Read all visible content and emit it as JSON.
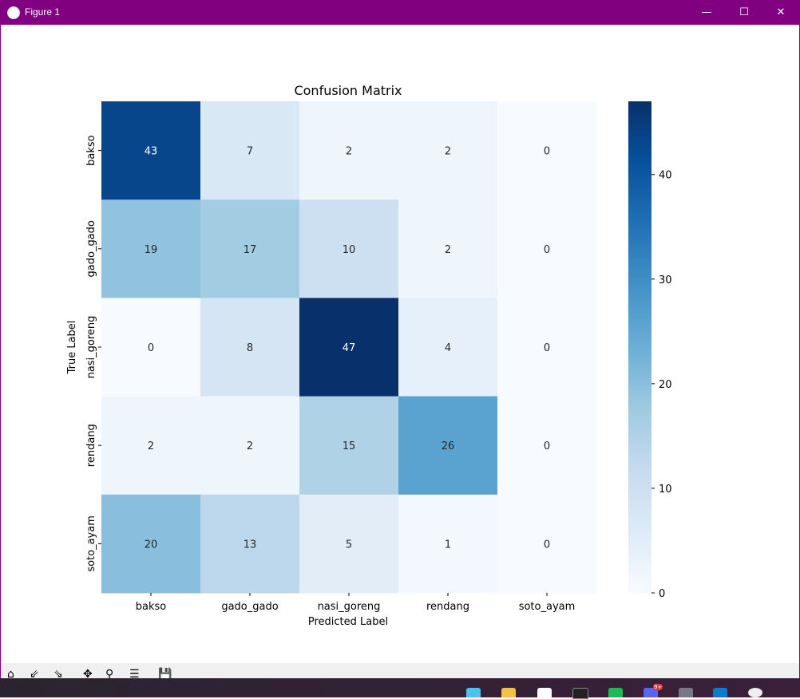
{
  "window": {
    "title": "Figure 1",
    "minimize": "—",
    "maximize": "☐",
    "close": "✕"
  },
  "colors": {
    "titlebar": "#800080",
    "cmap": "Blues"
  },
  "chart_data": {
    "type": "heatmap",
    "title": "Confusion Matrix",
    "xlabel": "Predicted Label",
    "ylabel": "True Label",
    "x_categories": [
      "bakso",
      "gado_gado",
      "nasi_goreng",
      "rendang",
      "soto_ayam"
    ],
    "y_categories": [
      "bakso",
      "gado_gado",
      "nasi_goreng",
      "rendang",
      "soto_ayam"
    ],
    "values": [
      [
        43,
        7,
        2,
        2,
        0
      ],
      [
        19,
        17,
        10,
        2,
        0
      ],
      [
        0,
        8,
        47,
        4,
        0
      ],
      [
        2,
        2,
        15,
        26,
        0
      ],
      [
        20,
        13,
        5,
        1,
        0
      ]
    ],
    "colorbar": {
      "range": [
        0,
        47
      ],
      "ticks": [
        "0",
        "10",
        "20",
        "30",
        "40"
      ]
    },
    "colormap": "Blues"
  },
  "toolbar": {
    "icons": [
      "home-icon",
      "back-icon",
      "forward-icon",
      "pan-icon",
      "zoom-icon",
      "configure-icon",
      "save-icon"
    ]
  },
  "taskbar": {
    "discord_badge": "9+"
  }
}
